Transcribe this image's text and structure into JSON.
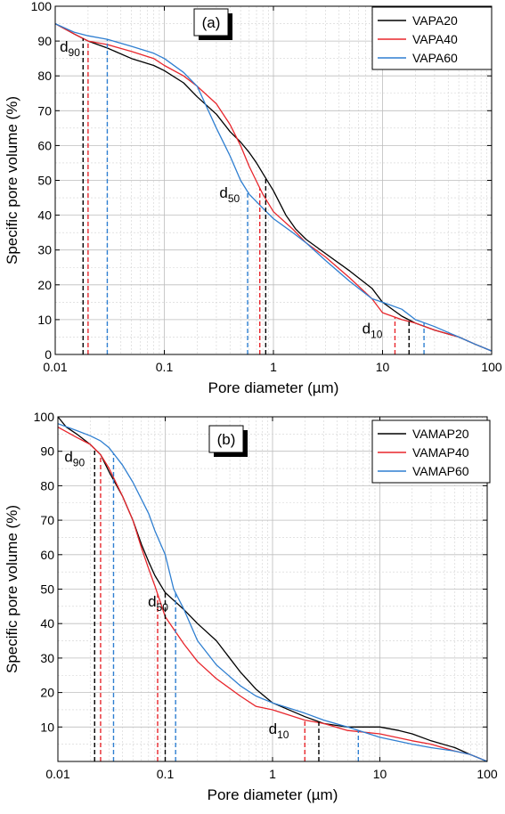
{
  "chart_data": [
    {
      "type": "line",
      "panel_label": "(a)",
      "xlabel": "Pore diameter (µm)",
      "ylabel": "Specific pore volume (%)",
      "xscale": "log",
      "xlim": [
        0.01,
        100
      ],
      "ylim": [
        0,
        100
      ],
      "xticks": [
        0.01,
        0.1,
        1,
        10,
        100
      ],
      "xtick_labels": [
        "0.01",
        "0.1",
        "1",
        "10",
        "100"
      ],
      "yticks": [
        0,
        10,
        20,
        30,
        40,
        50,
        60,
        70,
        80,
        90,
        100
      ],
      "ytick_labels": [
        "0",
        "10",
        "20",
        "30",
        "40",
        "50",
        "60",
        "70",
        "80",
        "90",
        "100"
      ],
      "grid": true,
      "legend_position": "top-right",
      "series": [
        {
          "name": "VAPA20",
          "color": "#000000",
          "points": [
            [
              0.01,
              95
            ],
            [
              0.015,
              92
            ],
            [
              0.02,
              90
            ],
            [
              0.03,
              88
            ],
            [
              0.05,
              85
            ],
            [
              0.08,
              83
            ],
            [
              0.1,
              81.5
            ],
            [
              0.15,
              78
            ],
            [
              0.2,
              74
            ],
            [
              0.3,
              69
            ],
            [
              0.4,
              64
            ],
            [
              0.5,
              61
            ],
            [
              0.6,
              58
            ],
            [
              0.7,
              55
            ],
            [
              0.8,
              52
            ],
            [
              1.0,
              47
            ],
            [
              1.3,
              40
            ],
            [
              1.6,
              36
            ],
            [
              2.0,
              33
            ],
            [
              3.0,
              29
            ],
            [
              5.0,
              24
            ],
            [
              8.0,
              19
            ],
            [
              10,
              15
            ],
            [
              15,
              11
            ],
            [
              20,
              9
            ],
            [
              30,
              7
            ],
            [
              50,
              5
            ],
            [
              70,
              3
            ],
            [
              100,
              1
            ]
          ],
          "markers": {
            "d90": 0.018,
            "d50": 0.85,
            "d10": 17.5
          }
        },
        {
          "name": "VAPA40",
          "color": "#e8262c",
          "points": [
            [
              0.01,
              95
            ],
            [
              0.015,
              92
            ],
            [
              0.02,
              90
            ],
            [
              0.03,
              89
            ],
            [
              0.05,
              87
            ],
            [
              0.08,
              85
            ],
            [
              0.1,
              83
            ],
            [
              0.15,
              80
            ],
            [
              0.2,
              77
            ],
            [
              0.3,
              72
            ],
            [
              0.4,
              66
            ],
            [
              0.5,
              60
            ],
            [
              0.6,
              54
            ],
            [
              0.8,
              46
            ],
            [
              1.0,
              41
            ],
            [
              1.5,
              36
            ],
            [
              2.0,
              32
            ],
            [
              3.0,
              28
            ],
            [
              5.0,
              22
            ],
            [
              8.0,
              16
            ],
            [
              10,
              12
            ],
            [
              15,
              10
            ],
            [
              20,
              9
            ],
            [
              30,
              7
            ],
            [
              50,
              5
            ],
            [
              70,
              3
            ],
            [
              100,
              1
            ]
          ],
          "markers": {
            "d90": 0.02,
            "d50": 0.75,
            "d10": 13
          }
        },
        {
          "name": "VAPA60",
          "color": "#2f7fd1",
          "points": [
            [
              0.01,
              95
            ],
            [
              0.015,
              92.5
            ],
            [
              0.02,
              91.5
            ],
            [
              0.03,
              90.5
            ],
            [
              0.05,
              88.5
            ],
            [
              0.08,
              86.5
            ],
            [
              0.1,
              85
            ],
            [
              0.15,
              81
            ],
            [
              0.2,
              77
            ],
            [
              0.3,
              65
            ],
            [
              0.4,
              57
            ],
            [
              0.5,
              50
            ],
            [
              0.6,
              46
            ],
            [
              0.8,
              42
            ],
            [
              1.0,
              39
            ],
            [
              1.5,
              35
            ],
            [
              2.0,
              32
            ],
            [
              3.0,
              27
            ],
            [
              5.0,
              21
            ],
            [
              8.0,
              16
            ],
            [
              10,
              15
            ],
            [
              15,
              13
            ],
            [
              20,
              10
            ],
            [
              30,
              8
            ],
            [
              50,
              5
            ],
            [
              70,
              3
            ],
            [
              100,
              1
            ]
          ],
          "markers": {
            "d90": 0.03,
            "d50": 0.58,
            "d10": 24
          }
        }
      ],
      "annotations": [
        {
          "base": "d",
          "sub": "90",
          "x": 0.011,
          "y": 87
        },
        {
          "base": "d",
          "sub": "50",
          "x": 0.32,
          "y": 45
        },
        {
          "base": "d",
          "sub": "10",
          "x": 6.5,
          "y": 6
        }
      ]
    },
    {
      "type": "line",
      "panel_label": "(b)",
      "xlabel": "Pore diameter (µm)",
      "ylabel": "Specific pore volume (%)",
      "xscale": "log",
      "xlim": [
        0.01,
        100
      ],
      "ylim": [
        0,
        100
      ],
      "xticks": [
        0.01,
        0.1,
        1,
        10,
        100
      ],
      "xtick_labels": [
        "0.01",
        "0.1",
        "1",
        "10",
        "100"
      ],
      "yticks": [
        10,
        20,
        30,
        40,
        50,
        60,
        70,
        80,
        90,
        100
      ],
      "ytick_labels": [
        "10",
        "20",
        "30",
        "40",
        "50",
        "60",
        "70",
        "80",
        "90",
        "100"
      ],
      "grid": true,
      "legend_position": "top-right",
      "series": [
        {
          "name": "VAMAP20",
          "color": "#000000",
          "points": [
            [
              0.01,
              100
            ],
            [
              0.012,
              97
            ],
            [
              0.015,
              95
            ],
            [
              0.02,
              92
            ],
            [
              0.025,
              89
            ],
            [
              0.03,
              84
            ],
            [
              0.04,
              77
            ],
            [
              0.05,
              70
            ],
            [
              0.06,
              63
            ],
            [
              0.07,
              58
            ],
            [
              0.08,
              54
            ],
            [
              0.1,
              49
            ],
            [
              0.15,
              44
            ],
            [
              0.2,
              40
            ],
            [
              0.3,
              35
            ],
            [
              0.5,
              26
            ],
            [
              0.7,
              21
            ],
            [
              1.0,
              17
            ],
            [
              2.0,
              13
            ],
            [
              3.0,
              11
            ],
            [
              5.0,
              10
            ],
            [
              10,
              10
            ],
            [
              15,
              9
            ],
            [
              20,
              8
            ],
            [
              30,
              6
            ],
            [
              50,
              4
            ],
            [
              70,
              2
            ],
            [
              100,
              0
            ]
          ],
          "markers": {
            "d90": 0.022,
            "d50": 0.1,
            "d10": 2.7
          }
        },
        {
          "name": "VAMAP40",
          "color": "#e8262c",
          "points": [
            [
              0.01,
              97
            ],
            [
              0.015,
              94
            ],
            [
              0.02,
              92
            ],
            [
              0.025,
              89
            ],
            [
              0.03,
              85
            ],
            [
              0.04,
              77
            ],
            [
              0.05,
              70
            ],
            [
              0.06,
              62
            ],
            [
              0.07,
              56
            ],
            [
              0.08,
              51
            ],
            [
              0.1,
              42
            ],
            [
              0.15,
              34
            ],
            [
              0.2,
              29
            ],
            [
              0.3,
              24
            ],
            [
              0.5,
              19
            ],
            [
              0.7,
              16
            ],
            [
              1.0,
              15
            ],
            [
              2.0,
              12
            ],
            [
              3.0,
              11
            ],
            [
              5.0,
              9
            ],
            [
              10,
              8
            ],
            [
              20,
              6
            ],
            [
              30,
              5
            ],
            [
              50,
              3
            ],
            [
              70,
              2
            ],
            [
              100,
              0
            ]
          ],
          "markers": {
            "d90": 0.025,
            "d50": 0.085,
            "d10": 2
          }
        },
        {
          "name": "VAMAP60",
          "color": "#2f7fd1",
          "points": [
            [
              0.01,
              98
            ],
            [
              0.015,
              96
            ],
            [
              0.02,
              94.5
            ],
            [
              0.025,
              93
            ],
            [
              0.03,
              91
            ],
            [
              0.04,
              86
            ],
            [
              0.05,
              81
            ],
            [
              0.07,
              72
            ],
            [
              0.08,
              67
            ],
            [
              0.1,
              60
            ],
            [
              0.12,
              50
            ],
            [
              0.15,
              44
            ],
            [
              0.2,
              35
            ],
            [
              0.3,
              28
            ],
            [
              0.5,
              22
            ],
            [
              0.7,
              19
            ],
            [
              1.0,
              17
            ],
            [
              2.0,
              14
            ],
            [
              3.0,
              12
            ],
            [
              5.0,
              10
            ],
            [
              10,
              7
            ],
            [
              20,
              5
            ],
            [
              30,
              4
            ],
            [
              50,
              3
            ],
            [
              70,
              2
            ],
            [
              100,
              0
            ]
          ],
          "markers": {
            "d90": 0.033,
            "d50": 0.125,
            "d10": 6.3
          }
        }
      ],
      "annotations": [
        {
          "base": "d",
          "sub": "90",
          "x": 0.0115,
          "y": 87
        },
        {
          "base": "d",
          "sub": "50",
          "x": 0.069,
          "y": 45
        },
        {
          "base": "d",
          "sub": "10",
          "x": 0.92,
          "y": 8
        }
      ]
    }
  ]
}
